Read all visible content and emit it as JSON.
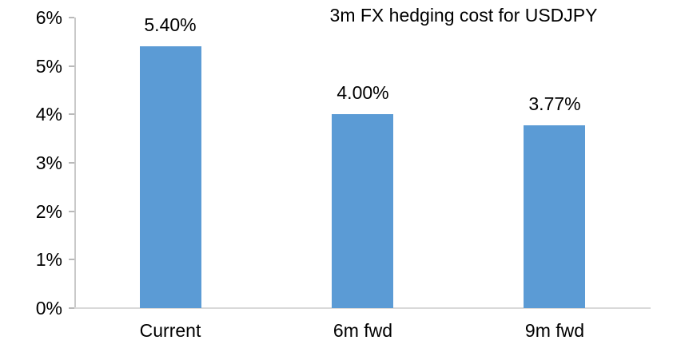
{
  "chart_data": {
    "type": "bar",
    "title": "3m FX hedging cost for USDJPY",
    "categories": [
      "Current",
      "6m fwd",
      "9m fwd"
    ],
    "series": [
      {
        "name": "3m FX hedging cost",
        "values": [
          5.4,
          4.0,
          3.77
        ]
      }
    ],
    "data_labels": [
      "5.40%",
      "4.00%",
      "3.77%"
    ],
    "xlabel": "",
    "ylabel": "",
    "ylim": [
      0,
      6
    ],
    "y_tick_step": 1,
    "y_tick_labels": [
      "0%",
      "1%",
      "2%",
      "3%",
      "4%",
      "5%",
      "6%"
    ],
    "grid": false,
    "legend": "none",
    "colors": {
      "bar": "#5B9BD5",
      "y_axis": "#C9C9C9",
      "x_axis": "#D9D9D9",
      "tick": "#B9B9B9",
      "text": "#000000",
      "background": "#FFFFFF"
    }
  }
}
